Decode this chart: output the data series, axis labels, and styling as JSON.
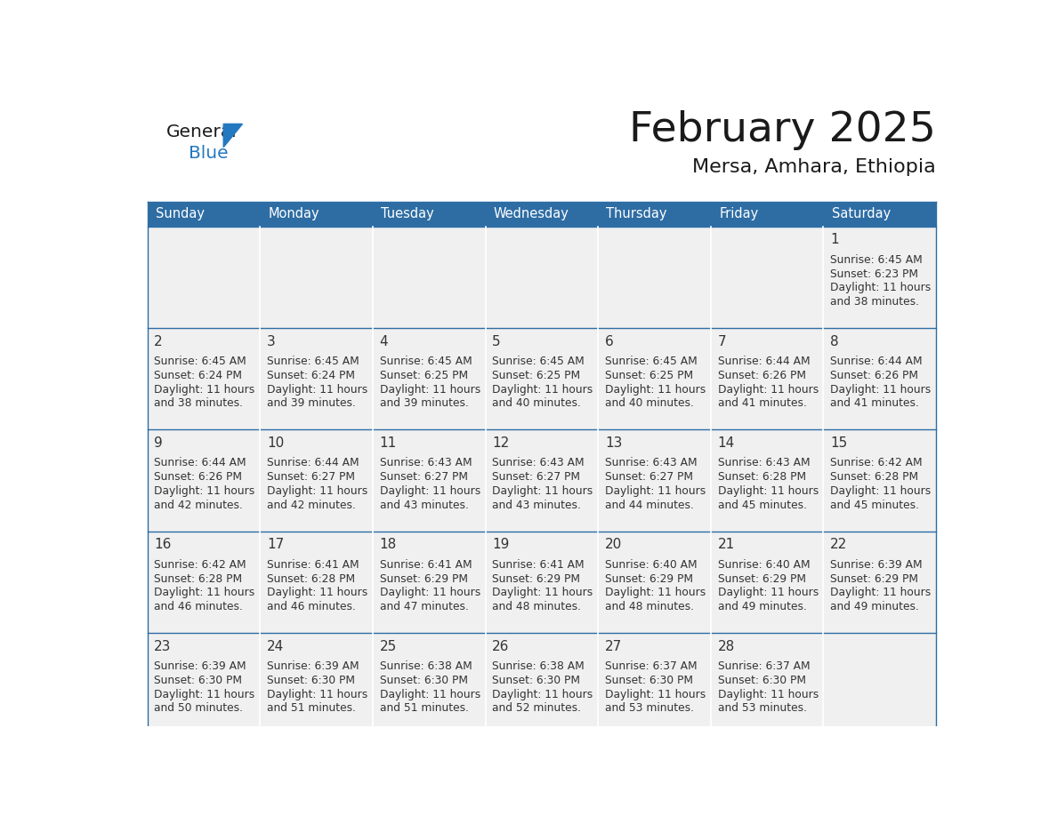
{
  "title": "February 2025",
  "subtitle": "Mersa, Amhara, Ethiopia",
  "header_bg": "#2E6DA4",
  "header_text": "#FFFFFF",
  "cell_bg": "#F0F0F0",
  "border_color": "#2E6DA4",
  "text_color": "#333333",
  "days_of_week": [
    "Sunday",
    "Monday",
    "Tuesday",
    "Wednesday",
    "Thursday",
    "Friday",
    "Saturday"
  ],
  "logo_general_color": "#1a1a1a",
  "logo_blue_color": "#2478C0",
  "calendar_data": [
    [
      null,
      null,
      null,
      null,
      null,
      null,
      {
        "day": "1",
        "sunrise": "6:45 AM",
        "sunset": "6:23 PM",
        "daylight_h": "11 hours",
        "daylight_m": "38 minutes."
      }
    ],
    [
      {
        "day": "2",
        "sunrise": "6:45 AM",
        "sunset": "6:24 PM",
        "daylight_h": "11 hours",
        "daylight_m": "38 minutes."
      },
      {
        "day": "3",
        "sunrise": "6:45 AM",
        "sunset": "6:24 PM",
        "daylight_h": "11 hours",
        "daylight_m": "39 minutes."
      },
      {
        "day": "4",
        "sunrise": "6:45 AM",
        "sunset": "6:25 PM",
        "daylight_h": "11 hours",
        "daylight_m": "39 minutes."
      },
      {
        "day": "5",
        "sunrise": "6:45 AM",
        "sunset": "6:25 PM",
        "daylight_h": "11 hours",
        "daylight_m": "40 minutes."
      },
      {
        "day": "6",
        "sunrise": "6:45 AM",
        "sunset": "6:25 PM",
        "daylight_h": "11 hours",
        "daylight_m": "40 minutes."
      },
      {
        "day": "7",
        "sunrise": "6:44 AM",
        "sunset": "6:26 PM",
        "daylight_h": "11 hours",
        "daylight_m": "41 minutes."
      },
      {
        "day": "8",
        "sunrise": "6:44 AM",
        "sunset": "6:26 PM",
        "daylight_h": "11 hours",
        "daylight_m": "41 minutes."
      }
    ],
    [
      {
        "day": "9",
        "sunrise": "6:44 AM",
        "sunset": "6:26 PM",
        "daylight_h": "11 hours",
        "daylight_m": "42 minutes."
      },
      {
        "day": "10",
        "sunrise": "6:44 AM",
        "sunset": "6:27 PM",
        "daylight_h": "11 hours",
        "daylight_m": "42 minutes."
      },
      {
        "day": "11",
        "sunrise": "6:43 AM",
        "sunset": "6:27 PM",
        "daylight_h": "11 hours",
        "daylight_m": "43 minutes."
      },
      {
        "day": "12",
        "sunrise": "6:43 AM",
        "sunset": "6:27 PM",
        "daylight_h": "11 hours",
        "daylight_m": "43 minutes."
      },
      {
        "day": "13",
        "sunrise": "6:43 AM",
        "sunset": "6:27 PM",
        "daylight_h": "11 hours",
        "daylight_m": "44 minutes."
      },
      {
        "day": "14",
        "sunrise": "6:43 AM",
        "sunset": "6:28 PM",
        "daylight_h": "11 hours",
        "daylight_m": "45 minutes."
      },
      {
        "day": "15",
        "sunrise": "6:42 AM",
        "sunset": "6:28 PM",
        "daylight_h": "11 hours",
        "daylight_m": "45 minutes."
      }
    ],
    [
      {
        "day": "16",
        "sunrise": "6:42 AM",
        "sunset": "6:28 PM",
        "daylight_h": "11 hours",
        "daylight_m": "46 minutes."
      },
      {
        "day": "17",
        "sunrise": "6:41 AM",
        "sunset": "6:28 PM",
        "daylight_h": "11 hours",
        "daylight_m": "46 minutes."
      },
      {
        "day": "18",
        "sunrise": "6:41 AM",
        "sunset": "6:29 PM",
        "daylight_h": "11 hours",
        "daylight_m": "47 minutes."
      },
      {
        "day": "19",
        "sunrise": "6:41 AM",
        "sunset": "6:29 PM",
        "daylight_h": "11 hours",
        "daylight_m": "48 minutes."
      },
      {
        "day": "20",
        "sunrise": "6:40 AM",
        "sunset": "6:29 PM",
        "daylight_h": "11 hours",
        "daylight_m": "48 minutes."
      },
      {
        "day": "21",
        "sunrise": "6:40 AM",
        "sunset": "6:29 PM",
        "daylight_h": "11 hours",
        "daylight_m": "49 minutes."
      },
      {
        "day": "22",
        "sunrise": "6:39 AM",
        "sunset": "6:29 PM",
        "daylight_h": "11 hours",
        "daylight_m": "49 minutes."
      }
    ],
    [
      {
        "day": "23",
        "sunrise": "6:39 AM",
        "sunset": "6:30 PM",
        "daylight_h": "11 hours",
        "daylight_m": "50 minutes."
      },
      {
        "day": "24",
        "sunrise": "6:39 AM",
        "sunset": "6:30 PM",
        "daylight_h": "11 hours",
        "daylight_m": "51 minutes."
      },
      {
        "day": "25",
        "sunrise": "6:38 AM",
        "sunset": "6:30 PM",
        "daylight_h": "11 hours",
        "daylight_m": "51 minutes."
      },
      {
        "day": "26",
        "sunrise": "6:38 AM",
        "sunset": "6:30 PM",
        "daylight_h": "11 hours",
        "daylight_m": "52 minutes."
      },
      {
        "day": "27",
        "sunrise": "6:37 AM",
        "sunset": "6:30 PM",
        "daylight_h": "11 hours",
        "daylight_m": "53 minutes."
      },
      {
        "day": "28",
        "sunrise": "6:37 AM",
        "sunset": "6:30 PM",
        "daylight_h": "11 hours",
        "daylight_m": "53 minutes."
      },
      null
    ]
  ]
}
